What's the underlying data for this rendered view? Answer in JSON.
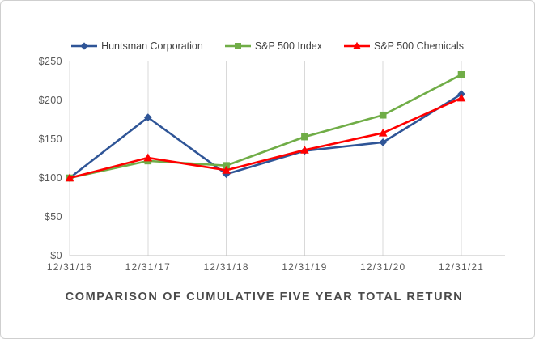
{
  "chart_data": {
    "type": "line",
    "title": "COMPARISON OF CUMULATIVE FIVE YEAR TOTAL RETURN",
    "categories": [
      "12/31/16",
      "12/31/17",
      "12/31/18",
      "12/31/19",
      "12/31/20",
      "12/31/21"
    ],
    "series": [
      {
        "name": "Huntsman Corporation",
        "color": "#2F5597",
        "marker": "diamond",
        "values": [
          100,
          178,
          105,
          135,
          146,
          208
        ]
      },
      {
        "name": "S&P 500 Index",
        "color": "#70AD47",
        "marker": "square",
        "values": [
          100,
          122,
          116,
          153,
          181,
          233
        ]
      },
      {
        "name": "S&P 500 Chemicals",
        "color": "#FF0000",
        "marker": "triangle",
        "values": [
          100,
          126,
          110,
          136,
          158,
          203
        ]
      }
    ],
    "y_axis": {
      "min": 0,
      "max": 250,
      "tick_values": [
        250,
        200,
        150,
        100,
        50,
        0
      ],
      "tick_labels": [
        "$250",
        "$200",
        "$150",
        "$100",
        "$50",
        "$0"
      ]
    },
    "legend_position": "top",
    "gridlines": "vertical-only"
  },
  "styles": {
    "grid_color": "#d9d9d9",
    "axis_color": "#bfbfbf",
    "tick_text_color": "#595959",
    "legend_text_color": "#404040",
    "title_text_color": "#4a4a4a",
    "frame_border_color": "#cfcfcf"
  }
}
